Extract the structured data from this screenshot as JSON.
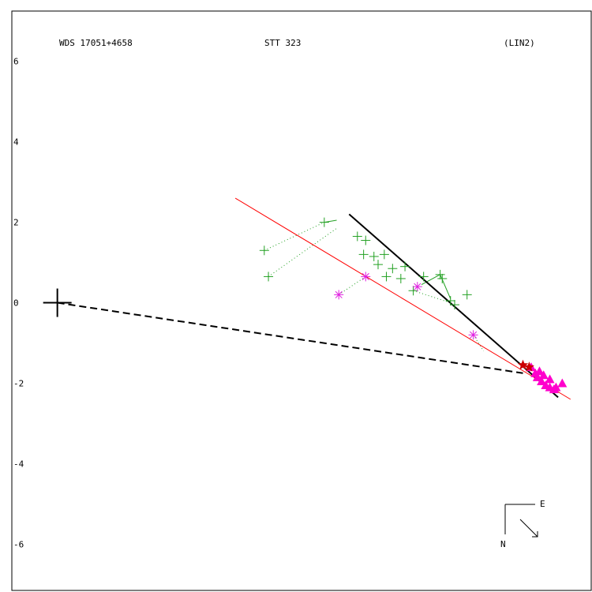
{
  "chart_data": {
    "type": "scatter",
    "title_left": "WDS 17051+4658",
    "title_center": "STT 323",
    "title_right": "(LIN2)",
    "yticks": [
      6,
      4,
      2,
      0,
      -2,
      -4,
      -6
    ],
    "ylim": [
      -7.15,
      7.25
    ],
    "xlim": [
      -0.8,
      13.2
    ],
    "grid": false,
    "legend": "none",
    "compass": {
      "east_label": "E",
      "north_label": "N"
    },
    "colors": {
      "frame": "#000000",
      "obs_plus": "#22a022",
      "obs_star": "#e020e0",
      "fit_line": "#ff0000",
      "predicted": "#ff00cc",
      "current": "#cc0000"
    },
    "primary": {
      "x": 0.3,
      "y": 0.0
    },
    "observations_plus": [
      {
        "x": 6.75,
        "y": 2.0
      },
      {
        "x": 5.3,
        "y": 1.3
      },
      {
        "x": 5.4,
        "y": 0.65
      },
      {
        "x": 7.55,
        "y": 1.65
      },
      {
        "x": 7.75,
        "y": 1.55
      },
      {
        "x": 7.7,
        "y": 1.2
      },
      {
        "x": 7.95,
        "y": 1.15
      },
      {
        "x": 8.2,
        "y": 1.2
      },
      {
        "x": 8.05,
        "y": 0.95
      },
      {
        "x": 8.4,
        "y": 0.85
      },
      {
        "x": 8.25,
        "y": 0.65
      },
      {
        "x": 8.7,
        "y": 0.9
      },
      {
        "x": 8.6,
        "y": 0.6
      },
      {
        "x": 8.9,
        "y": 0.3
      },
      {
        "x": 9.15,
        "y": 0.65
      },
      {
        "x": 9.55,
        "y": 0.7
      },
      {
        "x": 9.8,
        "y": 0.05
      },
      {
        "x": 9.9,
        "y": -0.05
      },
      {
        "x": 10.2,
        "y": 0.2
      },
      {
        "x": 9.6,
        "y": 0.6
      }
    ],
    "observations_star": [
      {
        "x": 7.1,
        "y": 0.2
      },
      {
        "x": 7.75,
        "y": 0.65
      },
      {
        "x": 9.0,
        "y": 0.4
      },
      {
        "x": 10.35,
        "y": -0.8
      }
    ],
    "dotted_links": [
      [
        {
          "x": 5.3,
          "y": 1.3
        },
        {
          "x": 6.75,
          "y": 2.0
        }
      ],
      [
        {
          "x": 5.4,
          "y": 0.65
        },
        {
          "x": 7.05,
          "y": 1.85
        }
      ],
      [
        {
          "x": 7.1,
          "y": 0.2
        },
        {
          "x": 7.75,
          "y": 0.65
        }
      ],
      [
        {
          "x": 8.9,
          "y": 0.3
        },
        {
          "x": 9.8,
          "y": 0.0
        }
      ],
      [
        {
          "x": 10.35,
          "y": -0.8
        },
        {
          "x": 10.6,
          "y": -1.2
        }
      ]
    ],
    "solid_links": [
      [
        {
          "x": 6.75,
          "y": 2.0
        },
        {
          "x": 7.05,
          "y": 2.05
        }
      ],
      [
        {
          "x": 9.1,
          "y": 0.45
        },
        {
          "x": 9.55,
          "y": 0.7
        }
      ],
      [
        {
          "x": 9.55,
          "y": 0.7
        },
        {
          "x": 9.8,
          "y": 0.1
        }
      ]
    ],
    "fit_line": [
      {
        "x": 4.6,
        "y": 2.6
      },
      {
        "x": 12.7,
        "y": -2.4
      }
    ],
    "orbit_segment": [
      {
        "x": 7.35,
        "y": 2.2
      },
      {
        "x": 12.4,
        "y": -2.35
      }
    ],
    "node_line": [
      {
        "x": 0.3,
        "y": 0.0
      },
      {
        "x": 11.55,
        "y": -1.75
      }
    ],
    "predicted_points": [
      {
        "x": 11.75,
        "y": -1.6
      },
      {
        "x": 11.85,
        "y": -1.75
      },
      {
        "x": 11.9,
        "y": -1.85
      },
      {
        "x": 12.0,
        "y": -1.95
      },
      {
        "x": 12.1,
        "y": -2.05
      },
      {
        "x": 12.2,
        "y": -2.1
      },
      {
        "x": 12.3,
        "y": -2.15
      },
      {
        "x": 12.35,
        "y": -2.1
      },
      {
        "x": 12.5,
        "y": -2.0
      },
      {
        "x": 12.05,
        "y": -1.8
      },
      {
        "x": 11.95,
        "y": -1.7
      },
      {
        "x": 12.2,
        "y": -1.9
      }
    ],
    "current_position": [
      {
        "x": 11.55,
        "y": -1.55
      },
      {
        "x": 11.7,
        "y": -1.6
      }
    ]
  }
}
